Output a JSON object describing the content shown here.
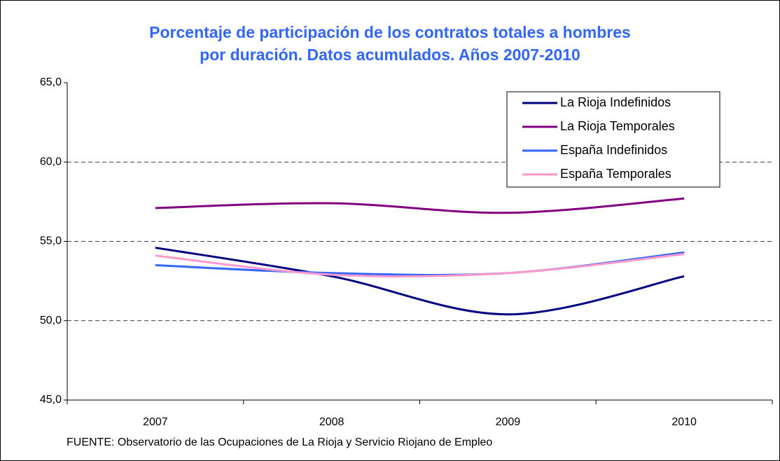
{
  "chart_data": {
    "type": "line",
    "title": [
      "Porcentaje de participación de los contratos totales a hombres",
      "por duración. Datos acumulados. Años 2007-2010"
    ],
    "source": "FUENTE: Observatorio de las Ocupaciones de La Rioja y Servicio Riojano de Empleo",
    "categories": [
      "2007",
      "2008",
      "2009",
      "2010"
    ],
    "series": [
      {
        "name": "La Rioja Indefinidos",
        "color": "#000080",
        "values": [
          54.6,
          52.8,
          50.4,
          52.8
        ]
      },
      {
        "name": "La Rioja Temporales",
        "color": "#800080",
        "values": [
          57.1,
          57.4,
          56.8,
          57.7
        ]
      },
      {
        "name": "España Indefinidos",
        "color": "#3366ff",
        "values": [
          53.5,
          53.0,
          53.0,
          54.3
        ]
      },
      {
        "name": "España Temporales",
        "color": "#ff99cc",
        "values": [
          54.1,
          52.9,
          53.0,
          54.2
        ]
      }
    ],
    "ylim": [
      45,
      65
    ],
    "yticks": [
      {
        "value": 45,
        "label": "45,0"
      },
      {
        "value": 50,
        "label": "50,0"
      },
      {
        "value": 55,
        "label": "55,0"
      },
      {
        "value": 60,
        "label": "60,0"
      },
      {
        "value": 65,
        "label": "65,0"
      }
    ],
    "grid": true,
    "smooth": true,
    "legend": "top-right"
  }
}
